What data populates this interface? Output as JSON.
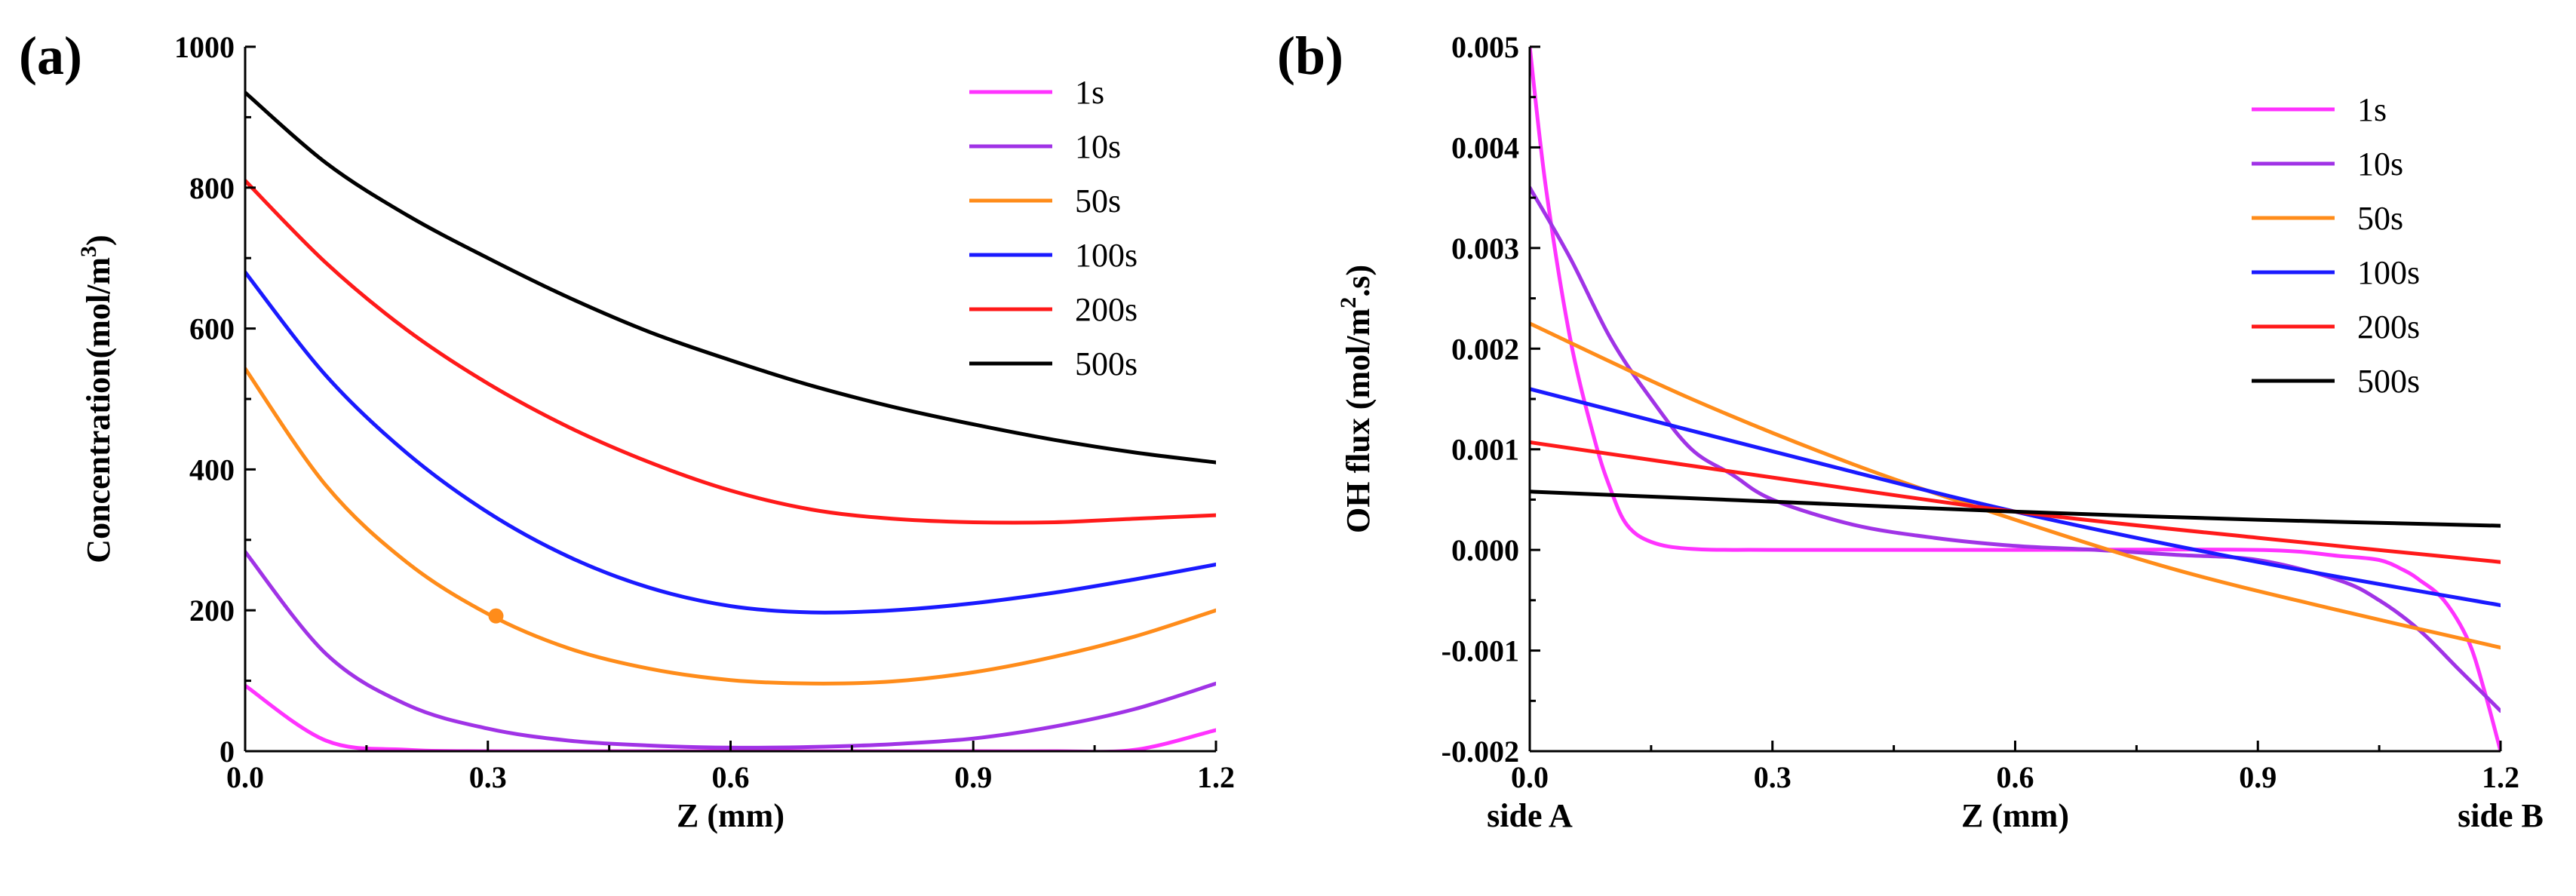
{
  "chart_data": [
    {
      "panel_label": "(a)",
      "type": "line",
      "xlabel": "Z (mm)",
      "ylabel": "Concentration(mol/m³)",
      "ylabel_parts": [
        "Concentration(mol/m",
        "3",
        ")"
      ],
      "xlim": [
        0,
        1.2
      ],
      "ylim": [
        0,
        1000
      ],
      "xticks": [
        "0.0",
        "0.3",
        "0.6",
        "0.9",
        "1.2"
      ],
      "yticks": [
        "0",
        "200",
        "400",
        "600",
        "800",
        "1000"
      ],
      "legend_position": "top-right",
      "colors": {
        "1s": "#ff33ff",
        "10s": "#a033e6",
        "50s": "#ff8c1a",
        "100s": "#1a1aff",
        "200s": "#ff1a1a",
        "500s": "#000000"
      },
      "x": [
        0,
        0.1,
        0.2,
        0.3,
        0.4,
        0.5,
        0.6,
        0.7,
        0.8,
        0.9,
        1.0,
        1.1,
        1.2
      ],
      "series": [
        {
          "name": "1s",
          "values": [
            93,
            15,
            2,
            0,
            0,
            0,
            0,
            0,
            0,
            0,
            0,
            2,
            30
          ]
        },
        {
          "name": "10s",
          "values": [
            283,
            138,
            66,
            32,
            15,
            8,
            5,
            6,
            10,
            18,
            35,
            60,
            96
          ]
        },
        {
          "name": "50s",
          "values": [
            543,
            377,
            268,
            195,
            146,
            117,
            101,
            96,
            99,
            112,
            134,
            163,
            200
          ]
        },
        {
          "name": "100s",
          "values": [
            680,
            533,
            423,
            339,
            276,
            232,
            206,
            197,
            200,
            210,
            225,
            244,
            265
          ]
        },
        {
          "name": "200s",
          "values": [
            810,
            693,
            598,
            522,
            460,
            410,
            370,
            343,
            330,
            325,
            325,
            330,
            335
          ]
        },
        {
          "name": "500s",
          "values": [
            935,
            835,
            761,
            700,
            644,
            595,
            555,
            519,
            489,
            464,
            442,
            424,
            410
          ]
        }
      ],
      "marker": {
        "series": "50s",
        "x": 0.31,
        "y": 192
      }
    },
    {
      "panel_label": "(b)",
      "type": "line",
      "xlabel": "Z (mm)",
      "ylabel": "OH flux (mol/m².s)",
      "ylabel_parts": [
        "OH flux (mol/m",
        "2",
        ".s)"
      ],
      "xlim": [
        0,
        1.2
      ],
      "ylim": [
        -0.002,
        0.005
      ],
      "xticks": [
        "0.0",
        "0.3",
        "0.6",
        "0.9",
        "1.2"
      ],
      "yticks": [
        "-0.002",
        "-0.001",
        "0.000",
        "0.001",
        "0.002",
        "0.003",
        "0.004",
        "0.005"
      ],
      "x_side_labels": [
        "side A",
        "side B"
      ],
      "legend_position": "top-right",
      "colors": {
        "1s": "#ff33ff",
        "10s": "#a033e6",
        "50s": "#ff8c1a",
        "100s": "#1a1aff",
        "200s": "#ff1a1a",
        "500s": "#000000"
      },
      "series": [
        {
          "name": "1s",
          "x": [
            0,
            0.02,
            0.05,
            0.08,
            0.1,
            0.12,
            0.15,
            0.2,
            0.3,
            0.6,
            0.9,
            1.0,
            1.05,
            1.08,
            1.1,
            1.13,
            1.16,
            1.18,
            1.2
          ],
          "values": [
            0.005,
            0.0036,
            0.0021,
            0.0011,
            0.0006,
            0.00025,
            8e-05,
            1e-05,
            0,
            0,
            0,
            -6e-05,
            -0.0001,
            -0.0002,
            -0.0003,
            -0.0005,
            -0.0009,
            -0.0014,
            -0.002
          ]
        },
        {
          "name": "10s",
          "x": [
            0,
            0.05,
            0.1,
            0.15,
            0.2,
            0.25,
            0.3,
            0.4,
            0.5,
            0.6,
            0.7,
            0.8,
            0.9,
            1.0,
            1.05,
            1.1,
            1.15,
            1.2
          ],
          "values": [
            0.0036,
            0.0029,
            0.0021,
            0.0015,
            0.001,
            0.00075,
            0.0005,
            0.00025,
            0.00012,
            4e-05,
            0,
            -5e-05,
            -0.0001,
            -0.0003,
            -0.0005,
            -0.0008,
            -0.0012,
            -0.0016
          ]
        },
        {
          "name": "50s",
          "x": [
            0,
            0.2,
            0.4,
            0.6,
            0.8,
            1.0,
            1.2
          ],
          "values": [
            0.00225,
            0.0015,
            0.00085,
            0.0003,
            -0.0002,
            -0.0006,
            -0.00097
          ]
        },
        {
          "name": "100s",
          "x": [
            0,
            0.3,
            0.6,
            0.9,
            1.2
          ],
          "values": [
            0.0016,
            0.00098,
            0.00038,
            -0.00012,
            -0.00055
          ]
        },
        {
          "name": "200s",
          "x": [
            0,
            0.3,
            0.6,
            0.9,
            1.2
          ],
          "values": [
            0.00107,
            0.00072,
            0.00038,
            0.00012,
            -0.00012
          ]
        },
        {
          "name": "500s",
          "x": [
            0,
            0.3,
            0.6,
            0.9,
            1.2
          ],
          "values": [
            0.00058,
            0.00048,
            0.00038,
            0.0003,
            0.00024
          ]
        }
      ]
    }
  ]
}
